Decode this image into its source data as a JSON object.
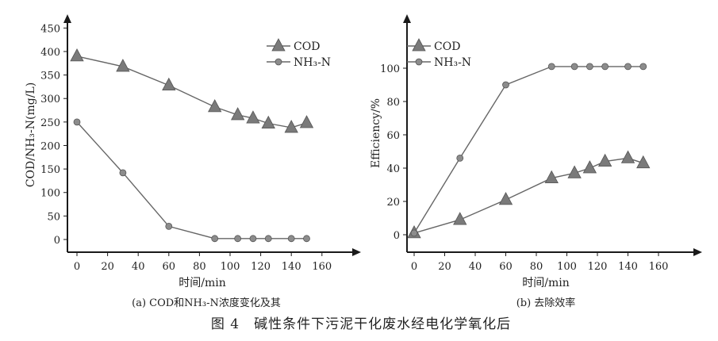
{
  "figure_caption": "图 4　碱性条件下污泥干化废水经电化学氧化后",
  "colors": {
    "axis": "#1a1a1a",
    "line": "#666666",
    "marker": "#7a7a7a",
    "ball": "#8c8c8c"
  },
  "chart_data": [
    {
      "type": "line",
      "caption": "(a) COD和NH₃-N浓度变化及其",
      "xlabel": "时间/min",
      "ylabel": "COD/NH₃-N(mg/L)",
      "xlim": [
        -5,
        170
      ],
      "ylim": [
        -15,
        460
      ],
      "xticks": [
        0,
        20,
        40,
        60,
        80,
        100,
        120,
        140,
        160
      ],
      "yticks": [
        0,
        50,
        100,
        150,
        200,
        250,
        300,
        350,
        400,
        450
      ],
      "legend_position": "top-right",
      "series": [
        {
          "name": "COD",
          "marker": "triangle",
          "x": [
            0,
            30,
            60,
            90,
            105,
            115,
            125,
            140,
            150
          ],
          "values": [
            390,
            368,
            328,
            282,
            265,
            258,
            247,
            238,
            248
          ]
        },
        {
          "name": "NH₃-N",
          "marker": "circle",
          "x": [
            0,
            30,
            60,
            90,
            105,
            115,
            125,
            140,
            150
          ],
          "values": [
            250,
            142,
            28,
            2,
            2,
            2,
            2,
            2,
            2
          ]
        }
      ]
    },
    {
      "type": "line",
      "caption": "(b) 去除效率",
      "xlabel": "时间/min",
      "ylabel": "Efficiency/%",
      "xlim": [
        -5,
        170
      ],
      "ylim": [
        -5,
        112
      ],
      "xticks": [
        0,
        20,
        40,
        60,
        80,
        100,
        120,
        140,
        160
      ],
      "yticks": [
        0,
        20,
        40,
        60,
        80,
        100
      ],
      "legend_position": "top-left",
      "series": [
        {
          "name": "COD",
          "marker": "triangle",
          "x": [
            0,
            30,
            60,
            90,
            105,
            115,
            125,
            140,
            150
          ],
          "values": [
            1,
            9,
            21,
            34,
            37,
            40,
            44,
            46,
            43
          ]
        },
        {
          "name": "NH₃-N",
          "marker": "circle",
          "x": [
            0,
            30,
            60,
            90,
            105,
            115,
            125,
            140,
            150
          ],
          "values": [
            1,
            46,
            90,
            101,
            101,
            101,
            101,
            101,
            101
          ]
        }
      ]
    }
  ]
}
